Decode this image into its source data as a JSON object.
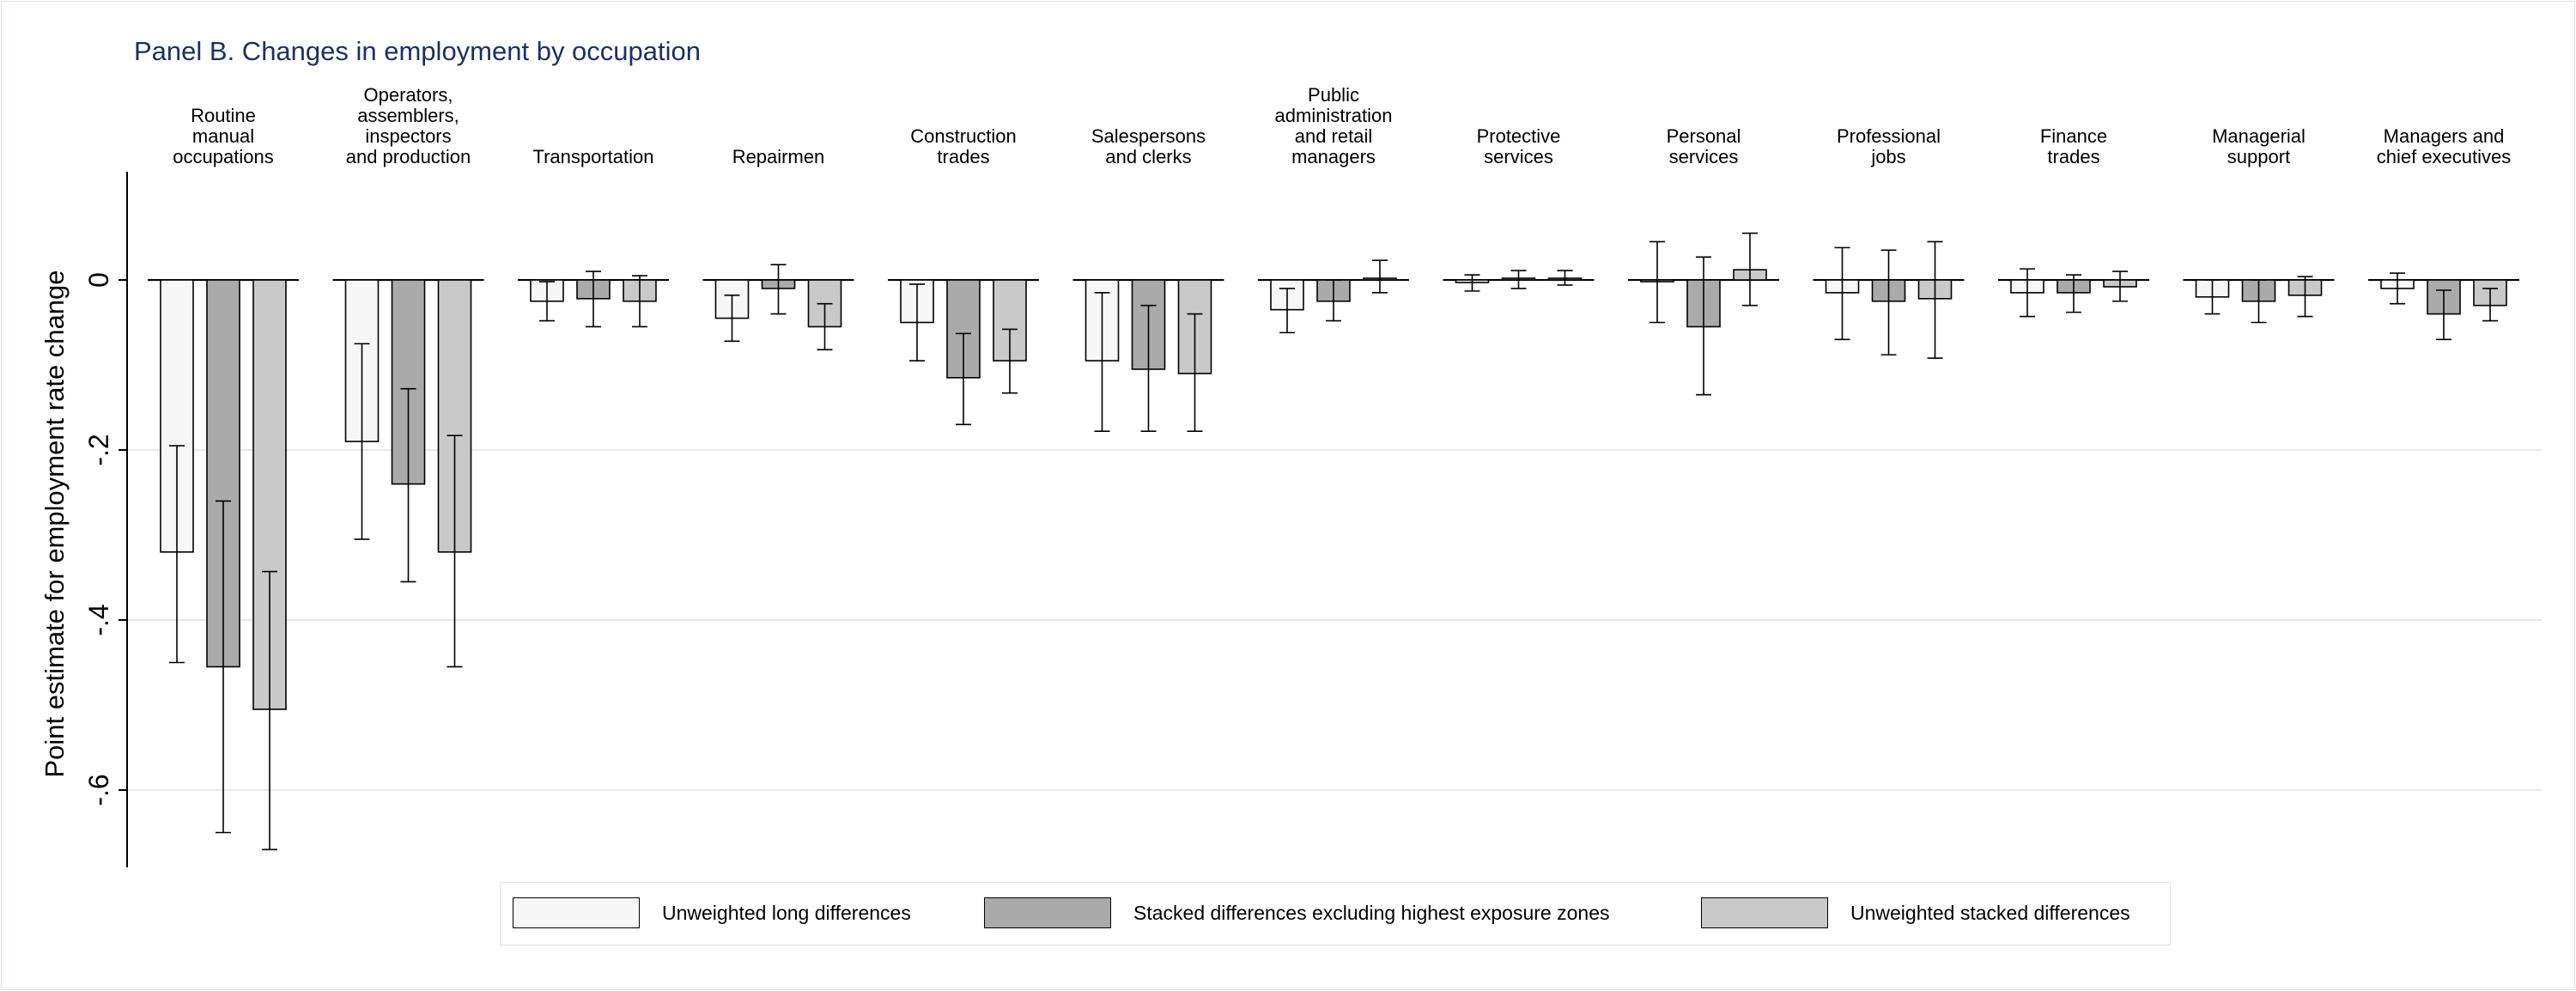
{
  "chart_data": {
    "type": "bar",
    "title": "Panel B. Changes in employment by occupation",
    "ylabel": "Point estimate for employment rate change",
    "ylim": [
      -0.68,
      0.12
    ],
    "yticks": [
      0,
      -0.2,
      -0.4,
      -0.6
    ],
    "ytick_labels": [
      "0",
      "-.2",
      "-.4",
      "-.6"
    ],
    "grid": true,
    "legend_position": "bottom",
    "categories": [
      "Routine manual occupations",
      "Operators, assemblers, inspectors and production",
      "Transportation",
      "Repairmen",
      "Construction trades",
      "Salespersons and clerks",
      "Public administration and retail managers",
      "Protective services",
      "Personal services",
      "Professional jobs",
      "Finance trades",
      "Managerial support",
      "Managers and chief executives"
    ],
    "category_label_lines": [
      [
        "Routine",
        "manual",
        "occupations"
      ],
      [
        "Operators,",
        "assemblers,",
        "inspectors",
        "and production"
      ],
      [
        "Transportation"
      ],
      [
        "Repairmen"
      ],
      [
        "Construction",
        "trades"
      ],
      [
        "Salespersons",
        "and clerks"
      ],
      [
        "Public",
        "administration",
        "and retail",
        "managers"
      ],
      [
        "Protective",
        "services"
      ],
      [
        "Personal",
        "services"
      ],
      [
        "Professional",
        "jobs"
      ],
      [
        "Finance",
        "trades"
      ],
      [
        "Managerial",
        "support"
      ],
      [
        "Managers and",
        "chief executives"
      ]
    ],
    "series": [
      {
        "name": "Unweighted long differences",
        "color": "#f7f7f7",
        "values": [
          -0.32,
          -0.19,
          -0.025,
          -0.045,
          -0.05,
          -0.095,
          -0.035,
          -0.003,
          -0.002,
          -0.015,
          -0.015,
          -0.02,
          -0.01
        ],
        "ci_low": [
          -0.45,
          -0.305,
          -0.048,
          -0.072,
          -0.095,
          -0.178,
          -0.062,
          -0.013,
          -0.05,
          -0.07,
          -0.043,
          -0.04,
          -0.028
        ],
        "ci_high": [
          -0.195,
          -0.075,
          -0.002,
          -0.018,
          -0.005,
          -0.015,
          -0.01,
          0.006,
          0.045,
          0.038,
          0.013,
          0.0,
          0.008
        ]
      },
      {
        "name": "Stacked differences excluding highest exposure zones",
        "color": "#aaaaaa",
        "values": [
          -0.455,
          -0.24,
          -0.022,
          -0.01,
          -0.115,
          -0.105,
          -0.025,
          0.002,
          -0.055,
          -0.025,
          -0.015,
          -0.025,
          -0.04
        ],
        "ci_low": [
          -0.65,
          -0.355,
          -0.055,
          -0.04,
          -0.17,
          -0.178,
          -0.048,
          -0.01,
          -0.135,
          -0.088,
          -0.038,
          -0.05,
          -0.07
        ],
        "ci_high": [
          -0.26,
          -0.128,
          0.01,
          0.018,
          -0.063,
          -0.03,
          0.0,
          0.011,
          0.027,
          0.035,
          0.006,
          0.0,
          -0.012
        ]
      },
      {
        "name": "Unweighted stacked differences",
        "color": "#c9c9c9",
        "values": [
          -0.505,
          -0.32,
          -0.025,
          -0.055,
          -0.095,
          -0.11,
          0.002,
          0.002,
          0.012,
          -0.022,
          -0.008,
          -0.018,
          -0.03
        ],
        "ci_low": [
          -0.67,
          -0.455,
          -0.055,
          -0.082,
          -0.133,
          -0.178,
          -0.015,
          -0.006,
          -0.03,
          -0.092,
          -0.025,
          -0.043,
          -0.048
        ],
        "ci_high": [
          -0.343,
          -0.183,
          0.005,
          -0.028,
          -0.058,
          -0.04,
          0.023,
          0.011,
          0.055,
          0.045,
          0.01,
          0.004,
          -0.01
        ]
      }
    ]
  }
}
